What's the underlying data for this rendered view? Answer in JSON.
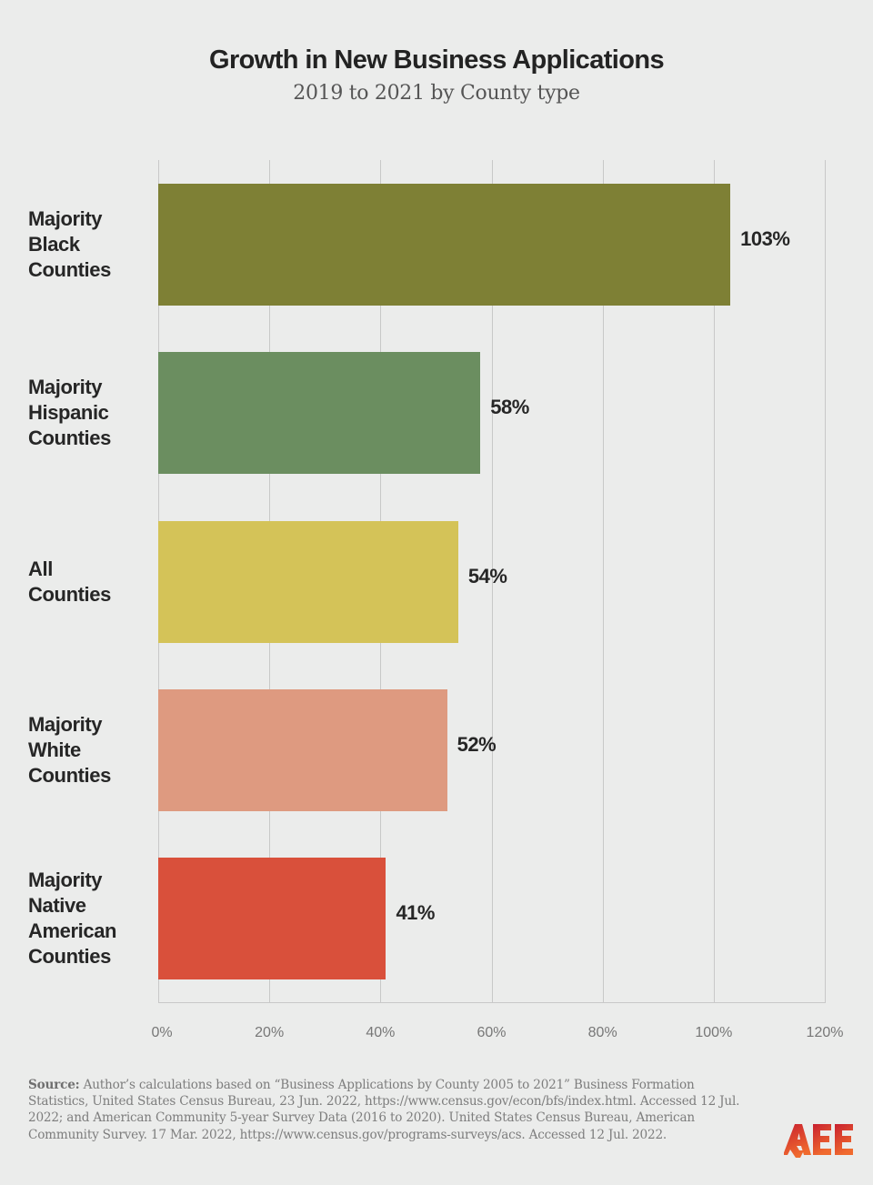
{
  "header": {
    "title": "Growth in New Business Applications",
    "subtitle": "2019 to 2021 by County type"
  },
  "chart_data": {
    "type": "bar",
    "orientation": "horizontal",
    "title": "Growth in New Business Applications",
    "subtitle": "2019 to 2021 by County type",
    "xlabel": "",
    "ylabel": "",
    "categories": [
      "Majority Black Counties",
      "Majority Hispanic Counties",
      "All Counties",
      "Majority White Counties",
      "Majority Native American Counties"
    ],
    "values": [
      103,
      58,
      54,
      52,
      41
    ],
    "value_labels": [
      "103%",
      "58%",
      "54%",
      "52%",
      "41%"
    ],
    "colors": [
      "#7e8035",
      "#6b8e60",
      "#d4c358",
      "#de9a80",
      "#d9503b"
    ],
    "xlim": [
      0,
      120
    ],
    "xticks": [
      "0%",
      "20%",
      "40%",
      "60%",
      "80%",
      "100%",
      "120%"
    ],
    "grid": "vertical",
    "legend": "none"
  },
  "bars": [
    {
      "lines": [
        "Majority",
        "Black",
        "Counties"
      ],
      "value": 103,
      "label": "103%",
      "color": "#7e8035"
    },
    {
      "lines": [
        "Majority",
        "Hispanic",
        "Counties"
      ],
      "value": 58,
      "label": "58%",
      "color": "#6b8e60"
    },
    {
      "lines": [
        "All",
        "Counties"
      ],
      "value": 54,
      "label": "54%",
      "color": "#d4c358"
    },
    {
      "lines": [
        "Majority",
        "White",
        "Counties"
      ],
      "value": 52,
      "label": "52%",
      "color": "#de9a80"
    },
    {
      "lines": [
        "Majority",
        "Native",
        "American",
        "Counties"
      ],
      "value": 41,
      "label": "41%",
      "color": "#d9503b"
    }
  ],
  "axis": {
    "ticks": [
      "0%",
      "20%",
      "40%",
      "60%",
      "80%",
      "100%",
      "120%"
    ],
    "max": 120
  },
  "footer": {
    "source_label": "Source:",
    "source_text": " Author’s calculations based on “Business Applications by County 2005 to 2021” Business Formation Statistics, United States Census Bureau, 23 Jun. 2022, https://www.census.gov/econ/bfs/index.html. Accessed 12 Jul. 2022; and American Community 5-year Survey Data (2016 to 2020). United States Census Bureau, American Community Survey. 17 Mar. 2022, https://www.census.gov/programs-surveys/acs. Accessed 12 Jul. 2022.",
    "logo_text": "AEE",
    "logo_colors": [
      "#c8202f",
      "#f06a2e"
    ]
  }
}
